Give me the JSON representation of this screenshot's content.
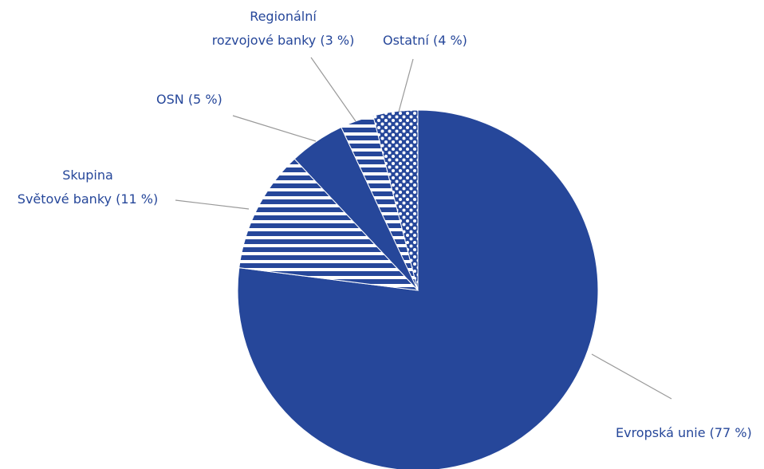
{
  "chart_data": {
    "type": "pie",
    "categories": [
      "Evropská unie",
      "Skupina\nSvětové banky",
      "OSN",
      "Regionální\nrozvojové banky",
      "Ostatní"
    ],
    "values": [
      77,
      11,
      5,
      3,
      4
    ],
    "value_labels": [
      "(77 %)",
      "(11 %)",
      "(5 %)",
      "(3 %)",
      "(4 %)"
    ],
    "color": "#26479a",
    "patterns": [
      "solid",
      "stripes",
      "solid",
      "stripes",
      "dots"
    ]
  }
}
